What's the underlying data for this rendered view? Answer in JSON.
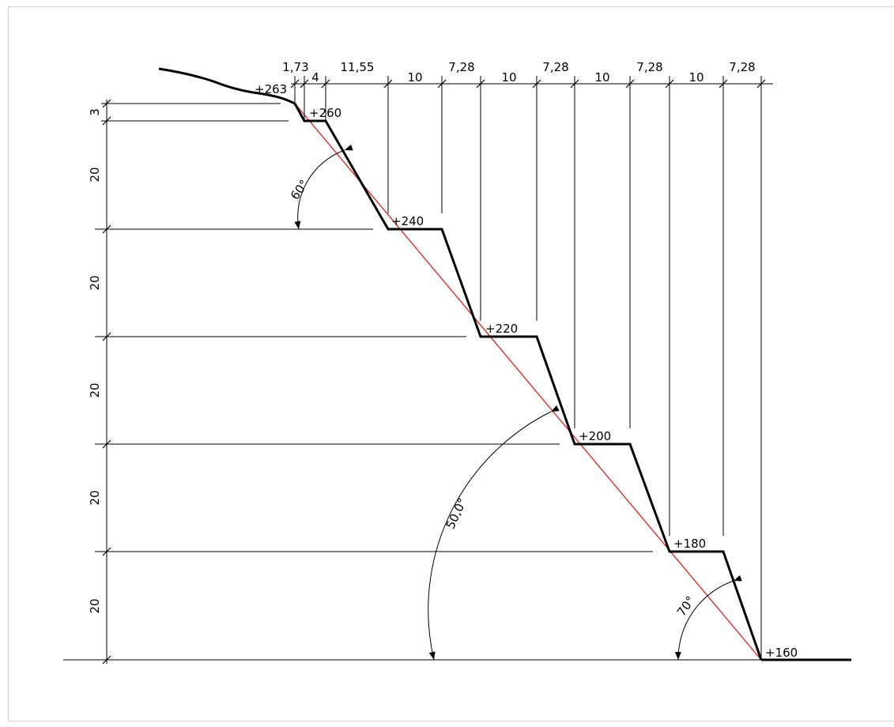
{
  "colors": {
    "line": "#000000",
    "overall_slope_line": "#e0201a",
    "background": "#ffffff"
  },
  "elevations": {
    "e263": "+263",
    "e260": "+260",
    "e240": "+240",
    "e220": "+220",
    "e200": "+200",
    "e180": "+180",
    "e160": "+160"
  },
  "horizontal_dims": {
    "d1": "1,73",
    "d2": "4",
    "d3": "11,55",
    "d4": "10",
    "d5": "7,28",
    "d6": "10",
    "d7": "7,28",
    "d8": "10",
    "d9": "7,28",
    "d10": "10",
    "d11": "7,28"
  },
  "vertical_dims": {
    "v1": "3",
    "v2": "20",
    "v3": "20",
    "v4": "20",
    "v5": "20",
    "v6": "20"
  },
  "angles": {
    "top_face": "60°",
    "overall": "50,0°",
    "bottom_face": "70°"
  }
}
